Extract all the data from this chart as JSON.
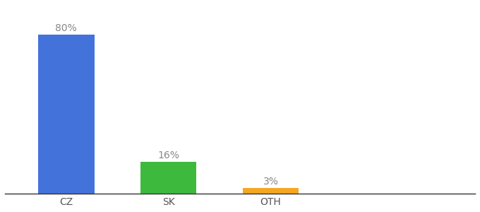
{
  "categories": [
    "CZ",
    "SK",
    "OTH"
  ],
  "values": [
    80,
    16,
    3
  ],
  "bar_colors": [
    "#4472db",
    "#3dba3d",
    "#f5a623"
  ],
  "labels": [
    "80%",
    "16%",
    "3%"
  ],
  "label_fontsize": 10,
  "tick_fontsize": 10,
  "ylim": [
    0,
    95
  ],
  "background_color": "#ffffff",
  "bar_width": 0.55,
  "x_positions": [
    0.5,
    1.5,
    2.5
  ],
  "xlim": [
    -0.1,
    4.5
  ]
}
